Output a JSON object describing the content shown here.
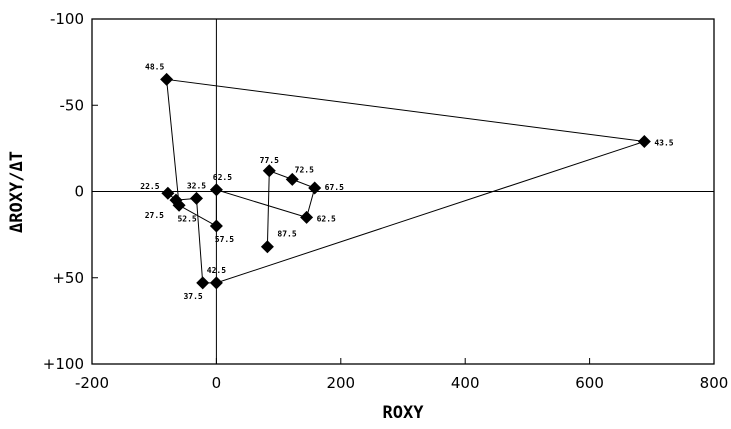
{
  "chart_data": {
    "type": "scatter",
    "title": "",
    "xlabel": "ROXY",
    "ylabel": "ΔROXY/ΔT",
    "xlim": [
      -200,
      800
    ],
    "ylim": [
      -100,
      100
    ],
    "y_axis_inverted": true,
    "grid": false,
    "x_ticks": [
      {
        "value": -200,
        "label": "-200"
      },
      {
        "value": 0,
        "label": "0"
      },
      {
        "value": 200,
        "label": "200"
      },
      {
        "value": 400,
        "label": "400"
      },
      {
        "value": 600,
        "label": "600"
      },
      {
        "value": 800,
        "label": "800"
      }
    ],
    "y_ticks": [
      {
        "value": -100,
        "label": "-100"
      },
      {
        "value": -50,
        "label": "-50"
      },
      {
        "value": 0,
        "label": "0"
      },
      {
        "value": 50,
        "label": "+50"
      },
      {
        "value": 100,
        "label": "+100"
      }
    ],
    "reference_lines": {
      "x": 0,
      "y": 0
    },
    "points": [
      {
        "label": "22.5",
        "x": -78,
        "y": 1
      },
      {
        "label": "27.5",
        "x": -65,
        "y": 5
      },
      {
        "label": "32.5",
        "x": -32,
        "y": 4
      },
      {
        "label": "37.5",
        "x": -22,
        "y": 53
      },
      {
        "label": "42.5",
        "x": 0,
        "y": 53
      },
      {
        "label": "43.5",
        "x": 688,
        "y": -29
      },
      {
        "label": "48.5",
        "x": -80,
        "y": -65
      },
      {
        "label": "52.5",
        "x": -60,
        "y": 8
      },
      {
        "label": "57.5",
        "x": 0,
        "y": 20
      },
      {
        "label": "62.5",
        "x": 0,
        "y": -1
      },
      {
        "label": "62.5",
        "x": 145,
        "y": 15
      },
      {
        "label": "67.5",
        "x": 158,
        "y": -2
      },
      {
        "label": "72.5",
        "x": 122,
        "y": -7
      },
      {
        "label": "77.5",
        "x": 85,
        "y": -12
      },
      {
        "label": "87.5",
        "x": 82,
        "y": 32
      }
    ],
    "path_order": [
      "22.5",
      "27.5",
      "32.5",
      "37.5",
      "42.5",
      "43.5",
      "48.5",
      "52.5",
      "57.5",
      "62.5",
      "62.5",
      "67.5",
      "72.5",
      "77.5",
      "87.5"
    ]
  }
}
